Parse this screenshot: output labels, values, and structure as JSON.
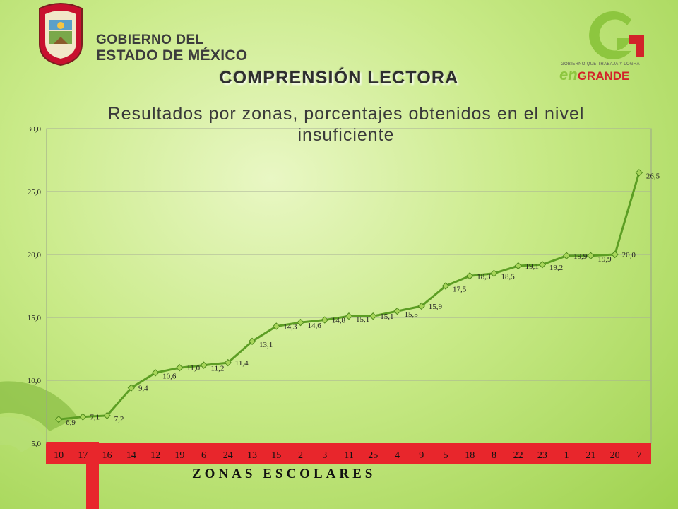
{
  "header": {
    "gov_line1": "GOBIERNO DEL",
    "gov_line2": "ESTADO DE MÉXICO",
    "brand_tagline": "GOBIERNO QUE TRABAJA Y LOGRA",
    "brand_en": "en",
    "brand_grande": "GRANDE"
  },
  "slide_title": "COMPRENSIÓN LECTORA",
  "colors": {
    "line": "#5c9e24",
    "marker": "#a8d65a",
    "accent": "#e8262c",
    "deco_green": "#7ab335"
  },
  "chart_data": {
    "type": "line",
    "title": "Resultados por zonas, porcentajes obtenidos en el nivel insuficiente",
    "xlabel": "ZONAS ESCOLARES",
    "ylabel": "",
    "ylim": [
      5,
      30
    ],
    "yticks": [
      "5,0",
      "10,0",
      "15,0",
      "20,0",
      "25,0",
      "30,0"
    ],
    "grid": true,
    "categories": [
      "10",
      "17",
      "16",
      "14",
      "12",
      "19",
      "6",
      "24",
      "13",
      "15",
      "2",
      "3",
      "11",
      "25",
      "4",
      "9",
      "5",
      "18",
      "8",
      "22",
      "23",
      "1",
      "21",
      "20",
      "7"
    ],
    "values": [
      6.9,
      7.1,
      7.2,
      9.4,
      10.6,
      11.0,
      11.2,
      11.4,
      13.1,
      14.3,
      14.6,
      14.8,
      15.1,
      15.1,
      15.5,
      15.9,
      17.5,
      18.3,
      18.5,
      19.1,
      19.2,
      19.9,
      19.9,
      20.0,
      26.5
    ],
    "data_labels": [
      "6,9",
      "7,1",
      "7,2",
      "9,4",
      "10,6",
      "11,0",
      "11,2",
      "11,4",
      "13,1",
      "14,3",
      "14,6",
      "14,8",
      "15,1",
      "15,1",
      "15,5",
      "15,9",
      "17,5",
      "18,3",
      "18,5",
      "19,1",
      "19,2",
      "19,9",
      "19,9",
      "20,0",
      "26,5"
    ]
  }
}
